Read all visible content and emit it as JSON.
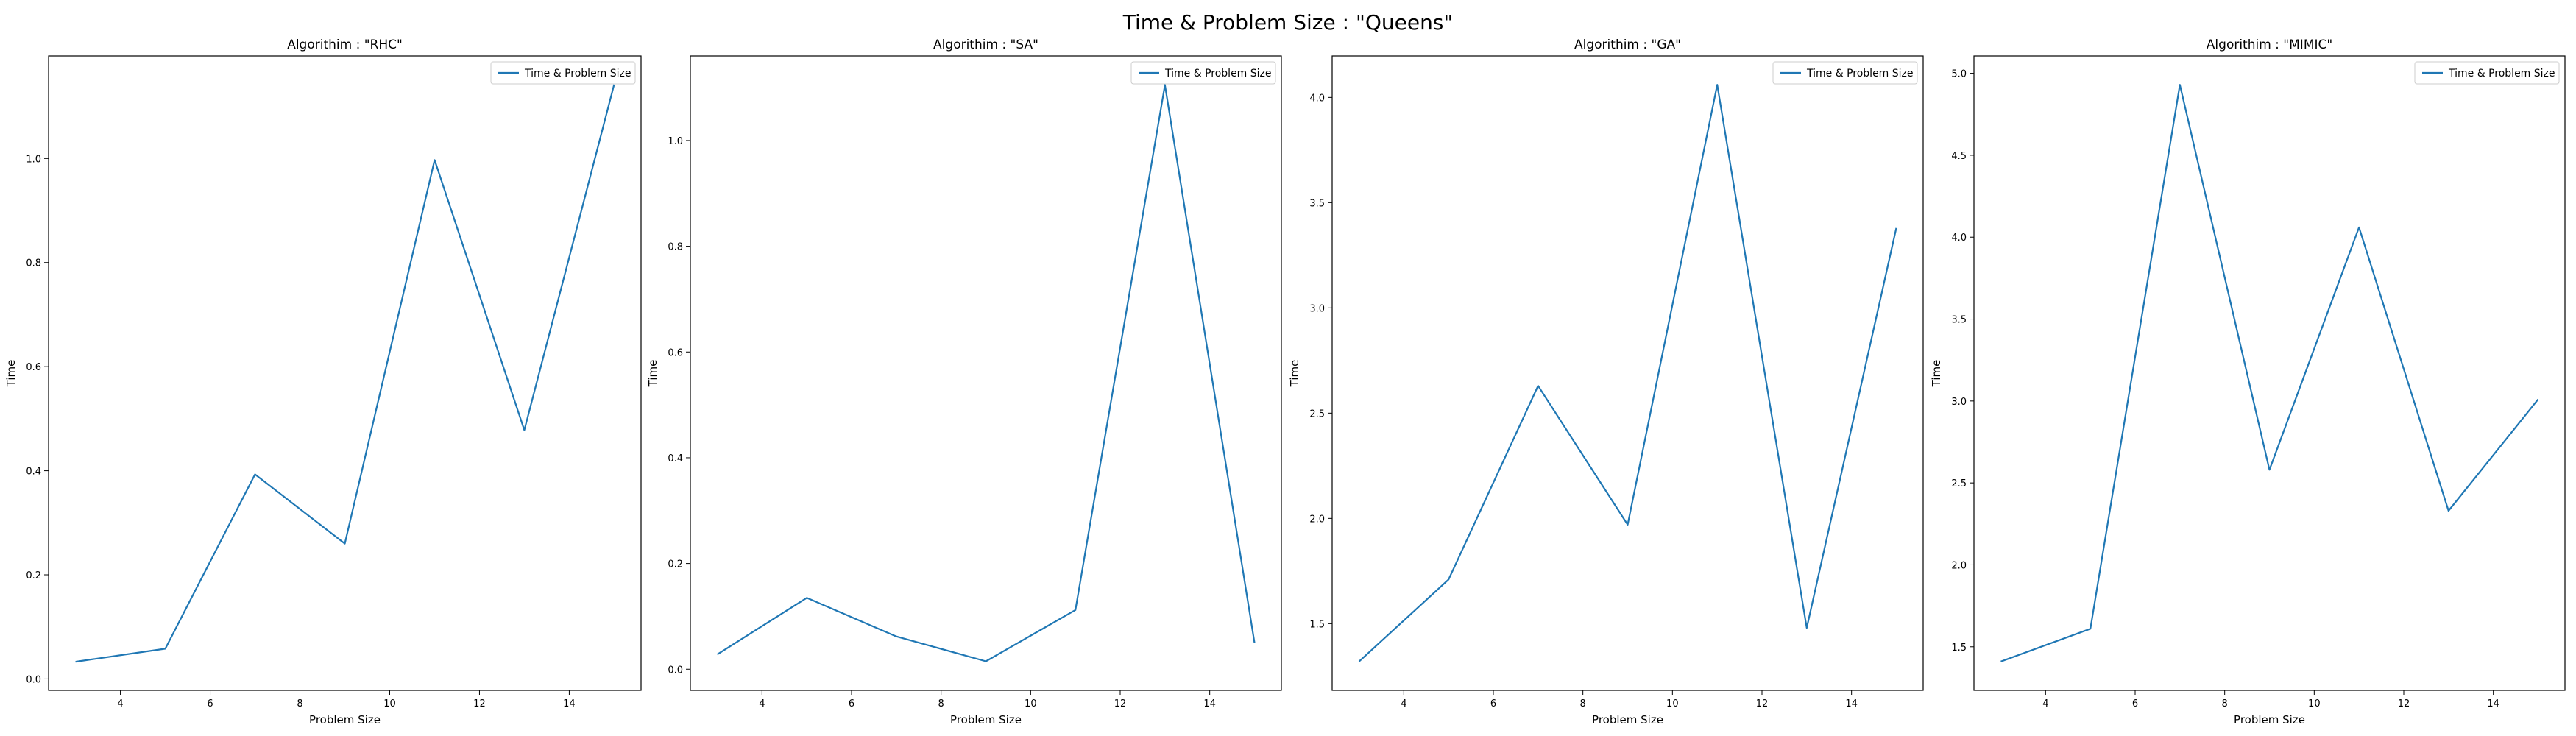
{
  "figure": {
    "suptitle": "Time & Problem Size : \"Queens\"",
    "line_color": "#1f77b4"
  },
  "chart_data": [
    {
      "type": "line",
      "title": "Algorithim : \"RHC\"",
      "xlabel": "Problem Size",
      "ylabel": "Time",
      "x": [
        3,
        5,
        7,
        9,
        11,
        13,
        15
      ],
      "series": [
        {
          "name": "Time & Problem Size",
          "values": [
            0.033,
            0.058,
            0.393,
            0.26,
            0.997,
            0.478,
            1.142
          ]
        }
      ],
      "xticks": [
        4,
        6,
        8,
        10,
        12,
        14
      ],
      "yticks": [
        0.0,
        0.2,
        0.4,
        0.6,
        0.8,
        1.0
      ],
      "ytick_labels": [
        "0.0",
        "0.2",
        "0.4",
        "0.6",
        "0.8",
        "1.0"
      ],
      "xlim": [
        2.4,
        15.6
      ],
      "ylim": [
        -0.022,
        1.197
      ],
      "legend": "upper right"
    },
    {
      "type": "line",
      "title": "Algorithim : \"SA\"",
      "xlabel": "Problem Size",
      "ylabel": "Time",
      "x": [
        3,
        5,
        7,
        9,
        11,
        13,
        15
      ],
      "series": [
        {
          "name": "Time & Problem Size",
          "values": [
            0.028,
            0.135,
            0.062,
            0.015,
            0.112,
            1.105,
            0.05
          ]
        }
      ],
      "xticks": [
        4,
        6,
        8,
        10,
        12,
        14
      ],
      "yticks": [
        0.0,
        0.2,
        0.4,
        0.6,
        0.8,
        1.0
      ],
      "ytick_labels": [
        "0.0",
        "0.2",
        "0.4",
        "0.6",
        "0.8",
        "1.0"
      ],
      "xlim": [
        2.4,
        15.6
      ],
      "ylim": [
        -0.04,
        1.16
      ],
      "legend": "upper right"
    },
    {
      "type": "line",
      "title": "Algorithim : \"GA\"",
      "xlabel": "Problem Size",
      "ylabel": "Time",
      "x": [
        3,
        5,
        7,
        9,
        11,
        13,
        15
      ],
      "series": [
        {
          "name": "Time & Problem Size",
          "values": [
            1.32,
            1.71,
            2.63,
            1.97,
            4.06,
            1.48,
            3.38
          ]
        }
      ],
      "xticks": [
        4,
        6,
        8,
        10,
        12,
        14
      ],
      "yticks": [
        1.5,
        2.0,
        2.5,
        3.0,
        3.5,
        4.0
      ],
      "ytick_labels": [
        "1.5",
        "2.0",
        "2.5",
        "3.0",
        "3.5",
        "4.0"
      ],
      "xlim": [
        2.4,
        15.6
      ],
      "ylim": [
        1.183,
        4.197
      ],
      "legend": "upper right"
    },
    {
      "type": "line",
      "title": "Algorithim : \"MIMIC\"",
      "xlabel": "Problem Size",
      "ylabel": "Time",
      "x": [
        3,
        5,
        7,
        9,
        11,
        13,
        15
      ],
      "series": [
        {
          "name": "Time & Problem Size",
          "values": [
            1.41,
            1.61,
            4.93,
            2.58,
            4.06,
            2.33,
            3.01
          ]
        }
      ],
      "xticks": [
        4,
        6,
        8,
        10,
        12,
        14
      ],
      "yticks": [
        1.5,
        2.0,
        2.5,
        3.0,
        3.5,
        4.0,
        4.5,
        5.0
      ],
      "ytick_labels": [
        "1.5",
        "2.0",
        "2.5",
        "3.0",
        "3.5",
        "4.0",
        "4.5",
        "5.0"
      ],
      "xlim": [
        2.4,
        15.6
      ],
      "ylim": [
        1.234,
        5.106
      ],
      "legend": "upper right"
    }
  ]
}
